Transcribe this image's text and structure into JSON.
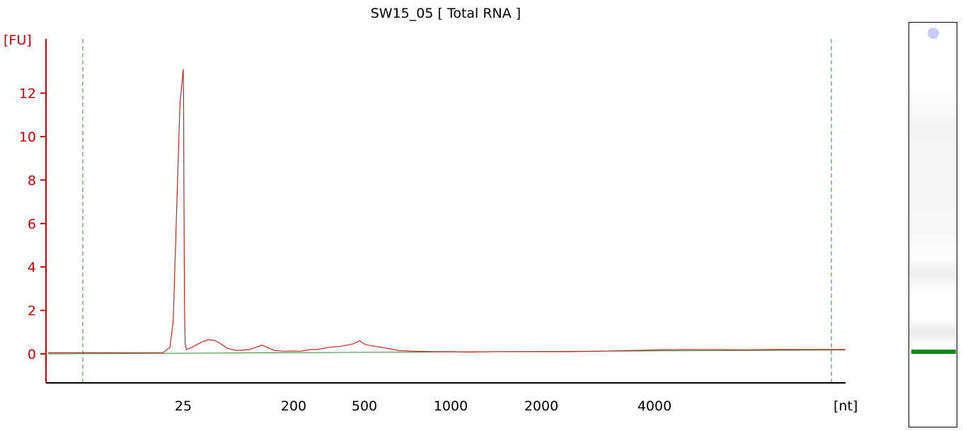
{
  "chart_data": {
    "type": "line",
    "title": "SW15_05  [ Total RNA ]",
    "ylabel": "[FU]",
    "xlabel": "[nt]",
    "ylim": [
      -1.2,
      14.8
    ],
    "y_ticks": [
      0,
      2,
      4,
      6,
      8,
      10,
      12
    ],
    "x_tick_labels": [
      "25",
      "200",
      "500",
      "1000",
      "2000",
      "4000"
    ],
    "grid": false,
    "marker_lines": "dashed green lines at lower and upper marker positions",
    "series": [
      {
        "color": "#c0281e",
        "x_nt": [
          20,
          22,
          23,
          23.5,
          24,
          24.5,
          25,
          25.5,
          26,
          27,
          28,
          30,
          35,
          45,
          55,
          65,
          75,
          85,
          95,
          110,
          130,
          150,
          170,
          185,
          200,
          230,
          270,
          300,
          350,
          400,
          450,
          480,
          500,
          520,
          560,
          600,
          700,
          800,
          900,
          1000,
          1200,
          1500,
          2000,
          2500,
          3000,
          3500,
          4000,
          5000,
          6000,
          7000,
          8000,
          9000,
          10000
        ],
        "y_fu": [
          0.05,
          0.06,
          0.3,
          1.5,
          6.5,
          11.5,
          13.1,
          12.0,
          7.5,
          2.0,
          0.45,
          0.2,
          0.25,
          0.4,
          0.55,
          0.65,
          0.62,
          0.45,
          0.25,
          0.15,
          0.2,
          0.4,
          0.15,
          0.12,
          0.13,
          0.12,
          0.2,
          0.2,
          0.3,
          0.35,
          0.45,
          0.6,
          0.45,
          0.4,
          0.35,
          0.3,
          0.15,
          0.12,
          0.1,
          0.1,
          0.08,
          0.1,
          0.1,
          0.1,
          0.12,
          0.15,
          0.18,
          0.2,
          0.2,
          0.18,
          0.2,
          0.2,
          0.2
        ]
      },
      {
        "color": "#2e8b2e",
        "x_nt": [
          10,
          10000
        ],
        "y_fu": [
          0.0,
          0.18
        ]
      }
    ]
  },
  "gel": {
    "marker_color": "#c8ccfa",
    "band_color": "#118a11"
  }
}
